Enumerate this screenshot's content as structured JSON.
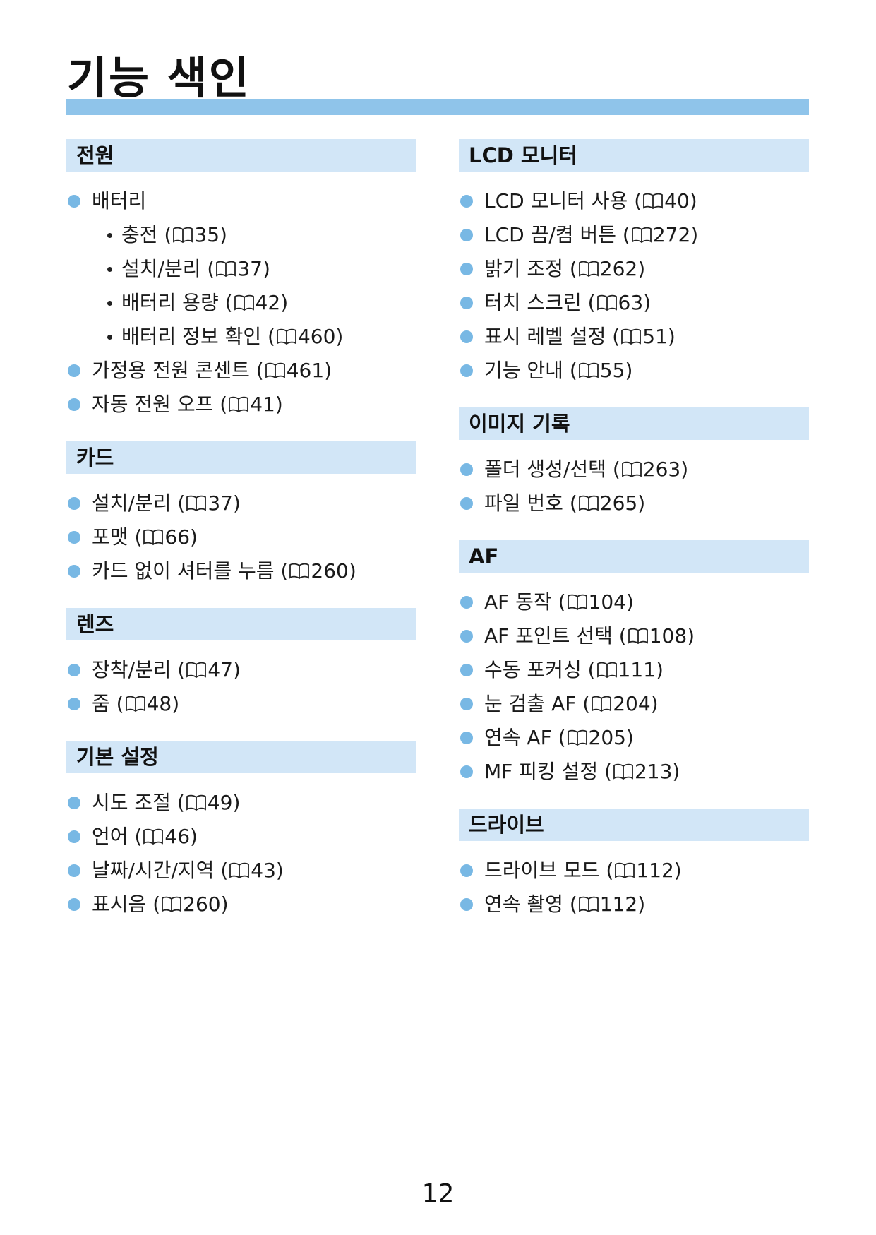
{
  "page": {
    "title": "기능 색인",
    "page_number": "12",
    "ref_icon": "manual-book-icon",
    "accent_color": "#8fc4ea",
    "header_color": "#d2e6f7",
    "bullet_color": "#78b8e4"
  },
  "columns": [
    {
      "sections": [
        {
          "heading": "전원",
          "items": [
            {
              "label": "배터리",
              "subitems": [
                {
                  "label": "충전",
                  "page": "35"
                },
                {
                  "label": "설치/분리",
                  "page": "37"
                },
                {
                  "label": "배터리 용량",
                  "page": "42"
                },
                {
                  "label": "배터리 정보 확인",
                  "page": "460"
                }
              ]
            },
            {
              "label": "가정용 전원 콘센트",
              "page": "461"
            },
            {
              "label": "자동 전원 오프",
              "page": "41"
            }
          ]
        },
        {
          "heading": "카드",
          "items": [
            {
              "label": "설치/분리",
              "page": "37"
            },
            {
              "label": "포맷",
              "page": "66"
            },
            {
              "label": "카드 없이 셔터를 누름",
              "page": "260"
            }
          ]
        },
        {
          "heading": "렌즈",
          "items": [
            {
              "label": "장착/분리",
              "page": "47"
            },
            {
              "label": "줌",
              "page": "48"
            }
          ]
        },
        {
          "heading": "기본 설정",
          "items": [
            {
              "label": "시도 조절",
              "page": "49"
            },
            {
              "label": "언어",
              "page": "46"
            },
            {
              "label": "날짜/시간/지역",
              "page": "43"
            },
            {
              "label": "표시음",
              "page": "260"
            }
          ]
        }
      ]
    },
    {
      "sections": [
        {
          "heading": "LCD 모니터",
          "items": [
            {
              "label": "LCD 모니터 사용",
              "page": "40"
            },
            {
              "label": "LCD 끔/켬 버튼",
              "page": "272"
            },
            {
              "label": "밝기 조정",
              "page": "262"
            },
            {
              "label": "터치 스크린",
              "page": "63"
            },
            {
              "label": "표시 레벨 설정",
              "page": "51"
            },
            {
              "label": "기능 안내",
              "page": "55"
            }
          ]
        },
        {
          "heading": "이미지 기록",
          "items": [
            {
              "label": "폴더 생성/선택",
              "page": "263"
            },
            {
              "label": "파일 번호",
              "page": "265"
            }
          ]
        },
        {
          "heading": "AF",
          "items": [
            {
              "label": "AF 동작",
              "page": "104"
            },
            {
              "label": "AF 포인트 선택",
              "page": "108"
            },
            {
              "label": "수동 포커싱",
              "page": "111"
            },
            {
              "label": "눈 검출 AF",
              "page": "204"
            },
            {
              "label": "연속 AF",
              "page": "205"
            },
            {
              "label": "MF 피킹 설정",
              "page": "213"
            }
          ]
        },
        {
          "heading": "드라이브",
          "items": [
            {
              "label": "드라이브 모드",
              "page": "112"
            },
            {
              "label": "연속 촬영",
              "page": "112"
            }
          ]
        }
      ]
    }
  ]
}
